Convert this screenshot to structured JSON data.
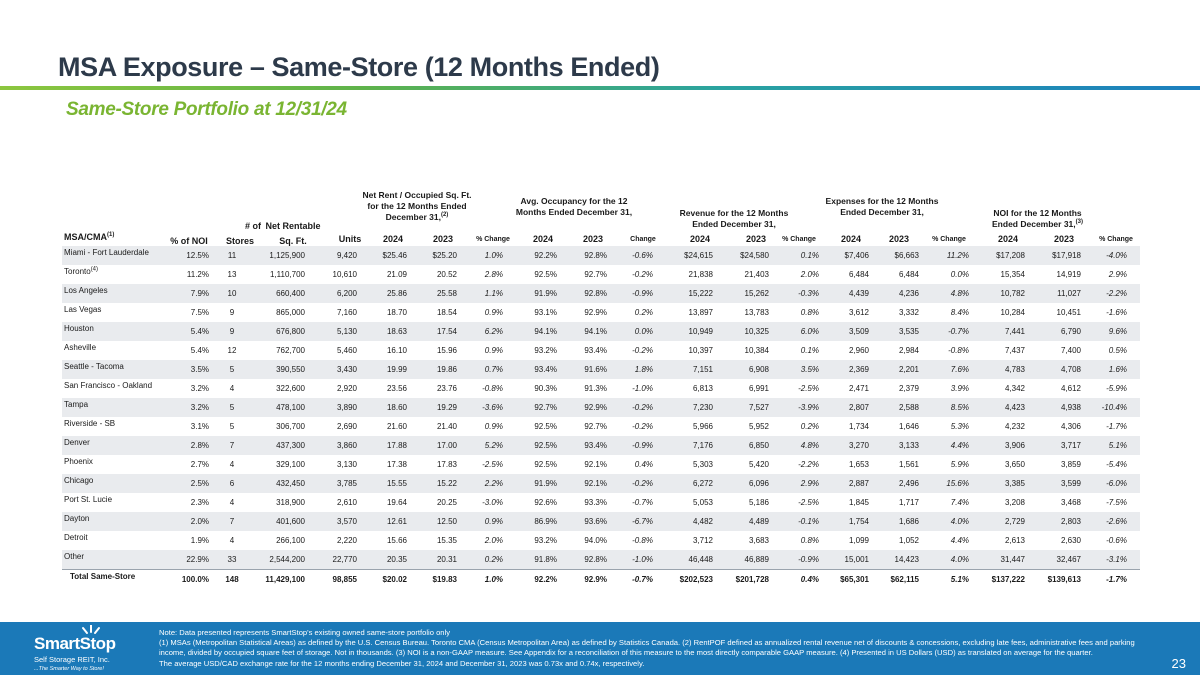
{
  "title": "MSA Exposure – Same-Store (12 Months Ended)",
  "subtitle": "Same-Store Portfolio at 12/31/24",
  "table": {
    "group_headers": {
      "net_rent": "Net Rent / Occupied Sq. Ft. for the 12 Months Ended December 31,",
      "net_rent_note": "(2)",
      "occupancy": "Avg. Occupancy for the 12 Months Ended December 31,",
      "revenue": "Revenue for the 12 Months Ended December 31,",
      "expenses": "Expenses for the 12 Months Ended December 31,",
      "noi": "NOI for the 12 Months Ended December 31,",
      "noi_note": "(3)"
    },
    "columns": {
      "msa": "MSA/CMA",
      "msa_note": "(1)",
      "pct_noi": "% of NOI",
      "stores_top": "# of",
      "stores": "Stores",
      "sqft_top": "Net Rentable",
      "sqft": "Sq. Ft.",
      "units": "Units",
      "y2024": "2024",
      "y2023": "2023",
      "pct_change": "% Change",
      "change": "Change"
    },
    "rows": [
      {
        "msa": "Miami - Fort Lauderdale",
        "note": "",
        "pct_noi": "12.5%",
        "stores": "11",
        "sqft": "1,125,900",
        "units": "9,420",
        "rent24": "$25.46",
        "rent23": "$25.20",
        "rent_chg": "1.0%",
        "occ24": "92.2%",
        "occ23": "92.8%",
        "occ_chg": "-0.6%",
        "rev24": "$24,615",
        "rev23": "$24,580",
        "rev_chg": "0.1%",
        "exp24": "$7,406",
        "exp23": "$6,663",
        "exp_chg": "11.2%",
        "noi24": "$17,208",
        "noi23": "$17,918",
        "noi_chg": "-4.0%"
      },
      {
        "msa": "Toronto",
        "note": "(4)",
        "pct_noi": "11.2%",
        "stores": "13",
        "sqft": "1,110,700",
        "units": "10,610",
        "rent24": "21.09",
        "rent23": "20.52",
        "rent_chg": "2.8%",
        "occ24": "92.5%",
        "occ23": "92.7%",
        "occ_chg": "-0.2%",
        "rev24": "21,838",
        "rev23": "21,403",
        "rev_chg": "2.0%",
        "exp24": "6,484",
        "exp23": "6,484",
        "exp_chg": "0.0%",
        "noi24": "15,354",
        "noi23": "14,919",
        "noi_chg": "2.9%"
      },
      {
        "msa": "Los Angeles",
        "note": "",
        "pct_noi": "7.9%",
        "stores": "10",
        "sqft": "660,400",
        "units": "6,200",
        "rent24": "25.86",
        "rent23": "25.58",
        "rent_chg": "1.1%",
        "occ24": "91.9%",
        "occ23": "92.8%",
        "occ_chg": "-0.9%",
        "rev24": "15,222",
        "rev23": "15,262",
        "rev_chg": "-0.3%",
        "exp24": "4,439",
        "exp23": "4,236",
        "exp_chg": "4.8%",
        "noi24": "10,782",
        "noi23": "11,027",
        "noi_chg": "-2.2%"
      },
      {
        "msa": "Las Vegas",
        "note": "",
        "pct_noi": "7.5%",
        "stores": "9",
        "sqft": "865,000",
        "units": "7,160",
        "rent24": "18.70",
        "rent23": "18.54",
        "rent_chg": "0.9%",
        "occ24": "93.1%",
        "occ23": "92.9%",
        "occ_chg": "0.2%",
        "rev24": "13,897",
        "rev23": "13,783",
        "rev_chg": "0.8%",
        "exp24": "3,612",
        "exp23": "3,332",
        "exp_chg": "8.4%",
        "noi24": "10,284",
        "noi23": "10,451",
        "noi_chg": "-1.6%"
      },
      {
        "msa": "Houston",
        "note": "",
        "pct_noi": "5.4%",
        "stores": "9",
        "sqft": "676,800",
        "units": "5,130",
        "rent24": "18.63",
        "rent23": "17.54",
        "rent_chg": "6.2%",
        "occ24": "94.1%",
        "occ23": "94.1%",
        "occ_chg": "0.0%",
        "rev24": "10,949",
        "rev23": "10,325",
        "rev_chg": "6.0%",
        "exp24": "3,509",
        "exp23": "3,535",
        "exp_chg": "-0.7%",
        "noi24": "7,441",
        "noi23": "6,790",
        "noi_chg": "9.6%"
      },
      {
        "msa": "Asheville",
        "note": "",
        "pct_noi": "5.4%",
        "stores": "12",
        "sqft": "762,700",
        "units": "5,460",
        "rent24": "16.10",
        "rent23": "15.96",
        "rent_chg": "0.9%",
        "occ24": "93.2%",
        "occ23": "93.4%",
        "occ_chg": "-0.2%",
        "rev24": "10,397",
        "rev23": "10,384",
        "rev_chg": "0.1%",
        "exp24": "2,960",
        "exp23": "2,984",
        "exp_chg": "-0.8%",
        "noi24": "7,437",
        "noi23": "7,400",
        "noi_chg": "0.5%"
      },
      {
        "msa": "Seattle - Tacoma",
        "note": "",
        "pct_noi": "3.5%",
        "stores": "5",
        "sqft": "390,550",
        "units": "3,430",
        "rent24": "19.99",
        "rent23": "19.86",
        "rent_chg": "0.7%",
        "occ24": "93.4%",
        "occ23": "91.6%",
        "occ_chg": "1.8%",
        "rev24": "7,151",
        "rev23": "6,908",
        "rev_chg": "3.5%",
        "exp24": "2,369",
        "exp23": "2,201",
        "exp_chg": "7.6%",
        "noi24": "4,783",
        "noi23": "4,708",
        "noi_chg": "1.6%"
      },
      {
        "msa": "San Francisco - Oakland",
        "note": "",
        "pct_noi": "3.2%",
        "stores": "4",
        "sqft": "322,600",
        "units": "2,920",
        "rent24": "23.56",
        "rent23": "23.76",
        "rent_chg": "-0.8%",
        "occ24": "90.3%",
        "occ23": "91.3%",
        "occ_chg": "-1.0%",
        "rev24": "6,813",
        "rev23": "6,991",
        "rev_chg": "-2.5%",
        "exp24": "2,471",
        "exp23": "2,379",
        "exp_chg": "3.9%",
        "noi24": "4,342",
        "noi23": "4,612",
        "noi_chg": "-5.9%"
      },
      {
        "msa": "Tampa",
        "note": "",
        "pct_noi": "3.2%",
        "stores": "5",
        "sqft": "478,100",
        "units": "3,890",
        "rent24": "18.60",
        "rent23": "19.29",
        "rent_chg": "-3.6%",
        "occ24": "92.7%",
        "occ23": "92.9%",
        "occ_chg": "-0.2%",
        "rev24": "7,230",
        "rev23": "7,527",
        "rev_chg": "-3.9%",
        "exp24": "2,807",
        "exp23": "2,588",
        "exp_chg": "8.5%",
        "noi24": "4,423",
        "noi23": "4,938",
        "noi_chg": "-10.4%"
      },
      {
        "msa": "Riverside - SB",
        "note": "",
        "pct_noi": "3.1%",
        "stores": "5",
        "sqft": "306,700",
        "units": "2,690",
        "rent24": "21.60",
        "rent23": "21.40",
        "rent_chg": "0.9%",
        "occ24": "92.5%",
        "occ23": "92.7%",
        "occ_chg": "-0.2%",
        "rev24": "5,966",
        "rev23": "5,952",
        "rev_chg": "0.2%",
        "exp24": "1,734",
        "exp23": "1,646",
        "exp_chg": "5.3%",
        "noi24": "4,232",
        "noi23": "4,306",
        "noi_chg": "-1.7%"
      },
      {
        "msa": "Denver",
        "note": "",
        "pct_noi": "2.8%",
        "stores": "7",
        "sqft": "437,300",
        "units": "3,860",
        "rent24": "17.88",
        "rent23": "17.00",
        "rent_chg": "5.2%",
        "occ24": "92.5%",
        "occ23": "93.4%",
        "occ_chg": "-0.9%",
        "rev24": "7,176",
        "rev23": "6,850",
        "rev_chg": "4.8%",
        "exp24": "3,270",
        "exp23": "3,133",
        "exp_chg": "4.4%",
        "noi24": "3,906",
        "noi23": "3,717",
        "noi_chg": "5.1%"
      },
      {
        "msa": "Phoenix",
        "note": "",
        "pct_noi": "2.7%",
        "stores": "4",
        "sqft": "329,100",
        "units": "3,130",
        "rent24": "17.38",
        "rent23": "17.83",
        "rent_chg": "-2.5%",
        "occ24": "92.5%",
        "occ23": "92.1%",
        "occ_chg": "0.4%",
        "rev24": "5,303",
        "rev23": "5,420",
        "rev_chg": "-2.2%",
        "exp24": "1,653",
        "exp23": "1,561",
        "exp_chg": "5.9%",
        "noi24": "3,650",
        "noi23": "3,859",
        "noi_chg": "-5.4%"
      },
      {
        "msa": "Chicago",
        "note": "",
        "pct_noi": "2.5%",
        "stores": "6",
        "sqft": "432,450",
        "units": "3,785",
        "rent24": "15.55",
        "rent23": "15.22",
        "rent_chg": "2.2%",
        "occ24": "91.9%",
        "occ23": "92.1%",
        "occ_chg": "-0.2%",
        "rev24": "6,272",
        "rev23": "6,096",
        "rev_chg": "2.9%",
        "exp24": "2,887",
        "exp23": "2,496",
        "exp_chg": "15.6%",
        "noi24": "3,385",
        "noi23": "3,599",
        "noi_chg": "-6.0%"
      },
      {
        "msa": "Port St. Lucie",
        "note": "",
        "pct_noi": "2.3%",
        "stores": "4",
        "sqft": "318,900",
        "units": "2,610",
        "rent24": "19.64",
        "rent23": "20.25",
        "rent_chg": "-3.0%",
        "occ24": "92.6%",
        "occ23": "93.3%",
        "occ_chg": "-0.7%",
        "rev24": "5,053",
        "rev23": "5,186",
        "rev_chg": "-2.5%",
        "exp24": "1,845",
        "exp23": "1,717",
        "exp_chg": "7.4%",
        "noi24": "3,208",
        "noi23": "3,468",
        "noi_chg": "-7.5%"
      },
      {
        "msa": "Dayton",
        "note": "",
        "pct_noi": "2.0%",
        "stores": "7",
        "sqft": "401,600",
        "units": "3,570",
        "rent24": "12.61",
        "rent23": "12.50",
        "rent_chg": "0.9%",
        "occ24": "86.9%",
        "occ23": "93.6%",
        "occ_chg": "-6.7%",
        "rev24": "4,482",
        "rev23": "4,489",
        "rev_chg": "-0.1%",
        "exp24": "1,754",
        "exp23": "1,686",
        "exp_chg": "4.0%",
        "noi24": "2,729",
        "noi23": "2,803",
        "noi_chg": "-2.6%"
      },
      {
        "msa": "Detroit",
        "note": "",
        "pct_noi": "1.9%",
        "stores": "4",
        "sqft": "266,100",
        "units": "2,220",
        "rent24": "15.66",
        "rent23": "15.35",
        "rent_chg": "2.0%",
        "occ24": "93.2%",
        "occ23": "94.0%",
        "occ_chg": "-0.8%",
        "rev24": "3,712",
        "rev23": "3,683",
        "rev_chg": "0.8%",
        "exp24": "1,099",
        "exp23": "1,052",
        "exp_chg": "4.4%",
        "noi24": "2,613",
        "noi23": "2,630",
        "noi_chg": "-0.6%"
      },
      {
        "msa": "Other",
        "note": "",
        "pct_noi": "22.9%",
        "stores": "33",
        "sqft": "2,544,200",
        "units": "22,770",
        "rent24": "20.35",
        "rent23": "20.31",
        "rent_chg": "0.2%",
        "occ24": "91.8%",
        "occ23": "92.8%",
        "occ_chg": "-1.0%",
        "rev24": "46,448",
        "rev23": "46,889",
        "rev_chg": "-0.9%",
        "exp24": "15,001",
        "exp23": "14,423",
        "exp_chg": "4.0%",
        "noi24": "31,447",
        "noi23": "32,467",
        "noi_chg": "-3.1%"
      }
    ],
    "total": {
      "msa": "Total Same-Store",
      "pct_noi": "100.0%",
      "stores": "148",
      "sqft": "11,429,100",
      "units": "98,855",
      "rent24": "$20.02",
      "rent23": "$19.83",
      "rent_chg": "1.0%",
      "occ24": "92.2%",
      "occ23": "92.9%",
      "occ_chg": "-0.7%",
      "rev24": "$202,523",
      "rev23": "$201,728",
      "rev_chg": "0.4%",
      "exp24": "$65,301",
      "exp23": "$62,115",
      "exp_chg": "5.1%",
      "noi24": "$137,222",
      "noi23": "$139,613",
      "noi_chg": "-1.7%"
    }
  },
  "footer": {
    "logo_name": "SmartStop",
    "logo_sub": "Self Storage REIT, Inc.",
    "logo_tagline": "...The Smarter Way to Store!",
    "notes": [
      "Note: Data presented represents SmartStop's existing owned same-store portfolio only",
      "(1) MSAs (Metropolitan Statistical Areas) as defined by the U.S. Census Bureau. Toronto CMA (Census Metropolitan Area) as defined by Statistics Canada. (2) RentPOF defined as annualized rental revenue net of discounts & concessions, excluding late fees, administrative fees and parking income, divided by occupied square feet of storage. Not in thousands. (3) NOI is a non-GAAP measure. See Appendix for a reconciliation of this measure to the most directly comparable GAAP measure. (4) Presented in US Dollars (USD) as translated on average for the quarter.",
      "The average USD/CAD exchange rate for the 12 months ending December 31, 2024 and December 31, 2023 was 0.73x and 0.74x, respectively."
    ],
    "page_number": "23",
    "colors": {
      "footer_bg": "#1b79b8",
      "accent_green": "#7ab532"
    }
  }
}
